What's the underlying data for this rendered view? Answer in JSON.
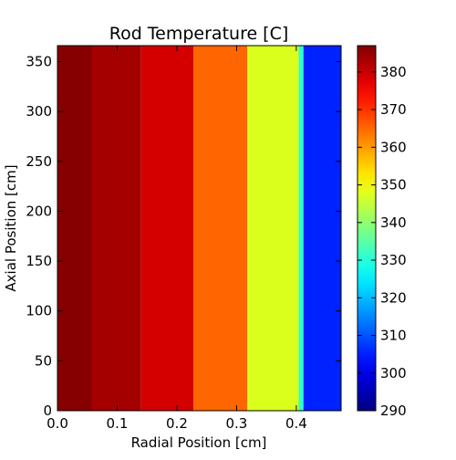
{
  "chart_data": {
    "type": "heatmap",
    "title": "Rod Temperature [C]",
    "xlabel": "Radial Position [cm]",
    "ylabel": "Axial Position [cm]",
    "xlim": [
      0,
      0.475
    ],
    "ylim": [
      0,
      366
    ],
    "xticks": [
      "0.0",
      "0.1",
      "0.2",
      "0.3",
      "0.4"
    ],
    "yticks": [
      "0",
      "50",
      "100",
      "150",
      "200",
      "250",
      "300",
      "350"
    ],
    "colormap": "jet",
    "color_range": [
      290,
      387
    ],
    "colorbar_ticks": [
      "290",
      "300",
      "310",
      "320",
      "330",
      "340",
      "350",
      "360",
      "370",
      "380"
    ],
    "grid": false,
    "bands": [
      {
        "x0": 0.0,
        "x1": 0.058,
        "value": 385,
        "color": "#870000"
      },
      {
        "x0": 0.058,
        "x1": 0.14,
        "value": 380,
        "color": "#a50000"
      },
      {
        "x0": 0.14,
        "x1": 0.228,
        "value": 373,
        "color": "#d40000"
      },
      {
        "x0": 0.228,
        "x1": 0.318,
        "value": 362,
        "color": "#ff6600"
      },
      {
        "x0": 0.318,
        "x1": 0.404,
        "value": 347,
        "color": "#daff1d"
      },
      {
        "x0": 0.404,
        "x1": 0.412,
        "value": 330,
        "color": "#2cffca"
      },
      {
        "x0": 0.412,
        "x1": 0.475,
        "value": 303,
        "color": "#0022ff"
      }
    ]
  }
}
